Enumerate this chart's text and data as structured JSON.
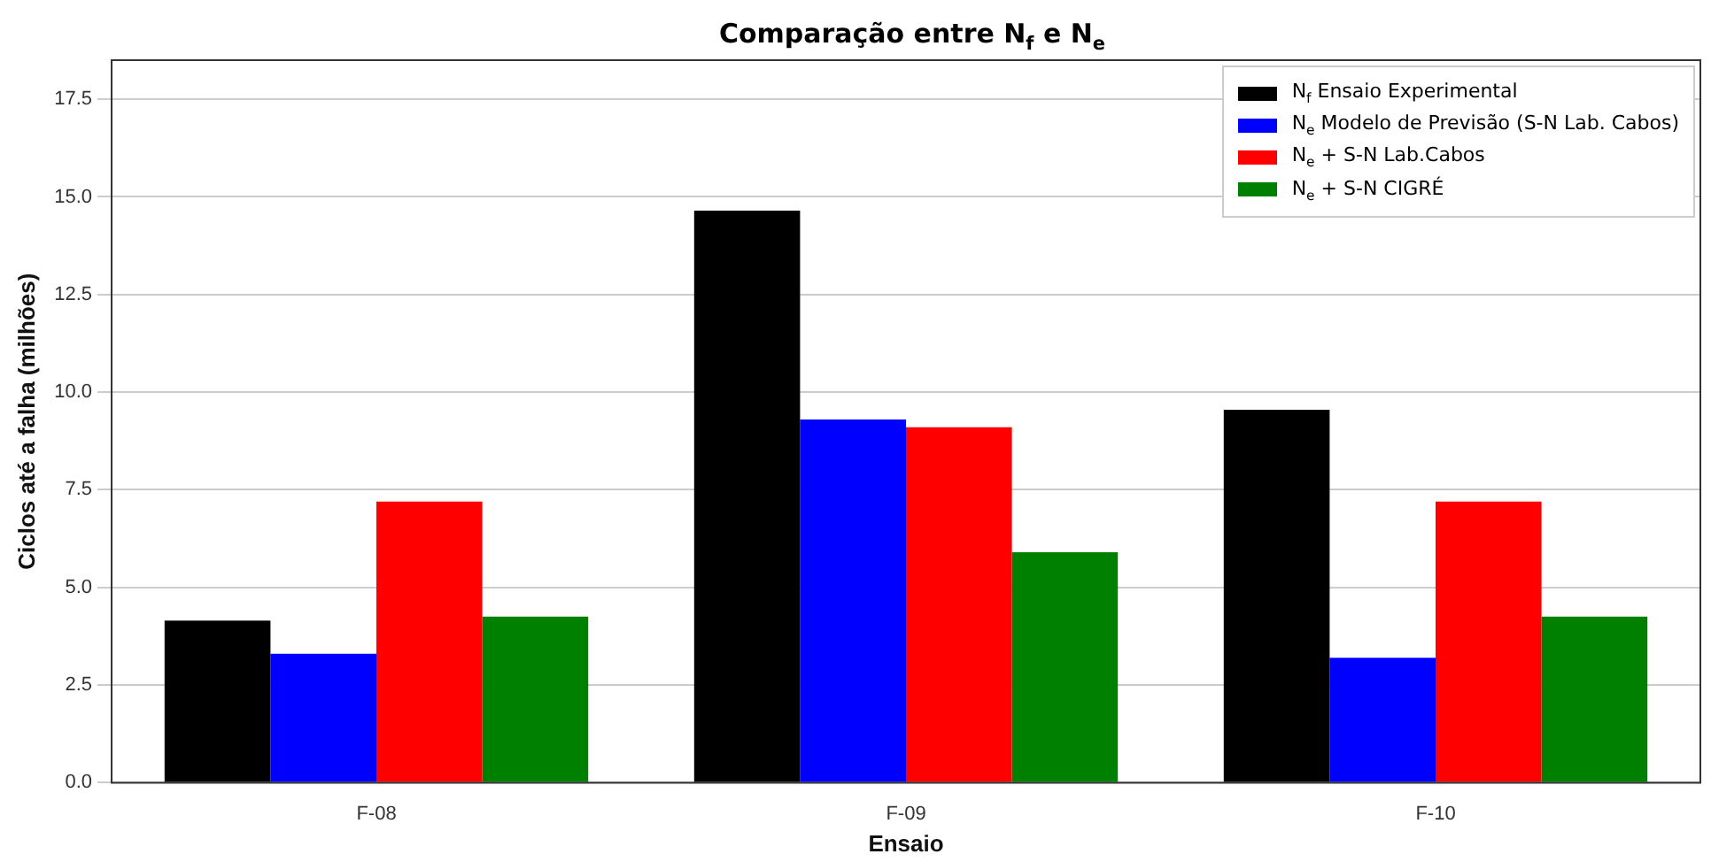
{
  "chart_data": {
    "type": "bar",
    "title": "Comparação entre N$_{f}$ e N$_{e}$",
    "xlabel": "Ensaio",
    "ylabel": "Ciclos até a falha (milhões)",
    "categories": [
      "F-08",
      "F-09",
      "F-10"
    ],
    "series": [
      {
        "name": "N$_{f}$ Ensaio Experimental",
        "color": "#000000",
        "values": [
          4.15,
          14.65,
          9.55
        ]
      },
      {
        "name": "N$_{e}$ Modelo de Previsão (S-N Lab. Cabos)",
        "color": "#0000ff",
        "values": [
          3.3,
          9.3,
          3.2
        ]
      },
      {
        "name": "N$_{e}$ + S-N Lab.Cabos",
        "color": "#ff0000",
        "values": [
          7.2,
          9.1,
          7.2
        ]
      },
      {
        "name": "N$_{e}$ + S-N CIGRÉ",
        "color": "#008000",
        "values": [
          4.25,
          5.9,
          4.25
        ]
      }
    ],
    "ylim": [
      0,
      18.5
    ],
    "yticks": [
      {
        "value": 0,
        "label": "0.0"
      },
      {
        "value": 2.5,
        "label": "2.5"
      },
      {
        "value": 5,
        "label": "5.0"
      },
      {
        "value": 7.5,
        "label": "7.5"
      },
      {
        "value": 10,
        "label": "10.0"
      },
      {
        "value": 12.5,
        "label": "12.5"
      },
      {
        "value": 15,
        "label": "15.0"
      },
      {
        "value": 17.5,
        "label": "17.5"
      }
    ],
    "grid": "y",
    "legend": "top right"
  }
}
